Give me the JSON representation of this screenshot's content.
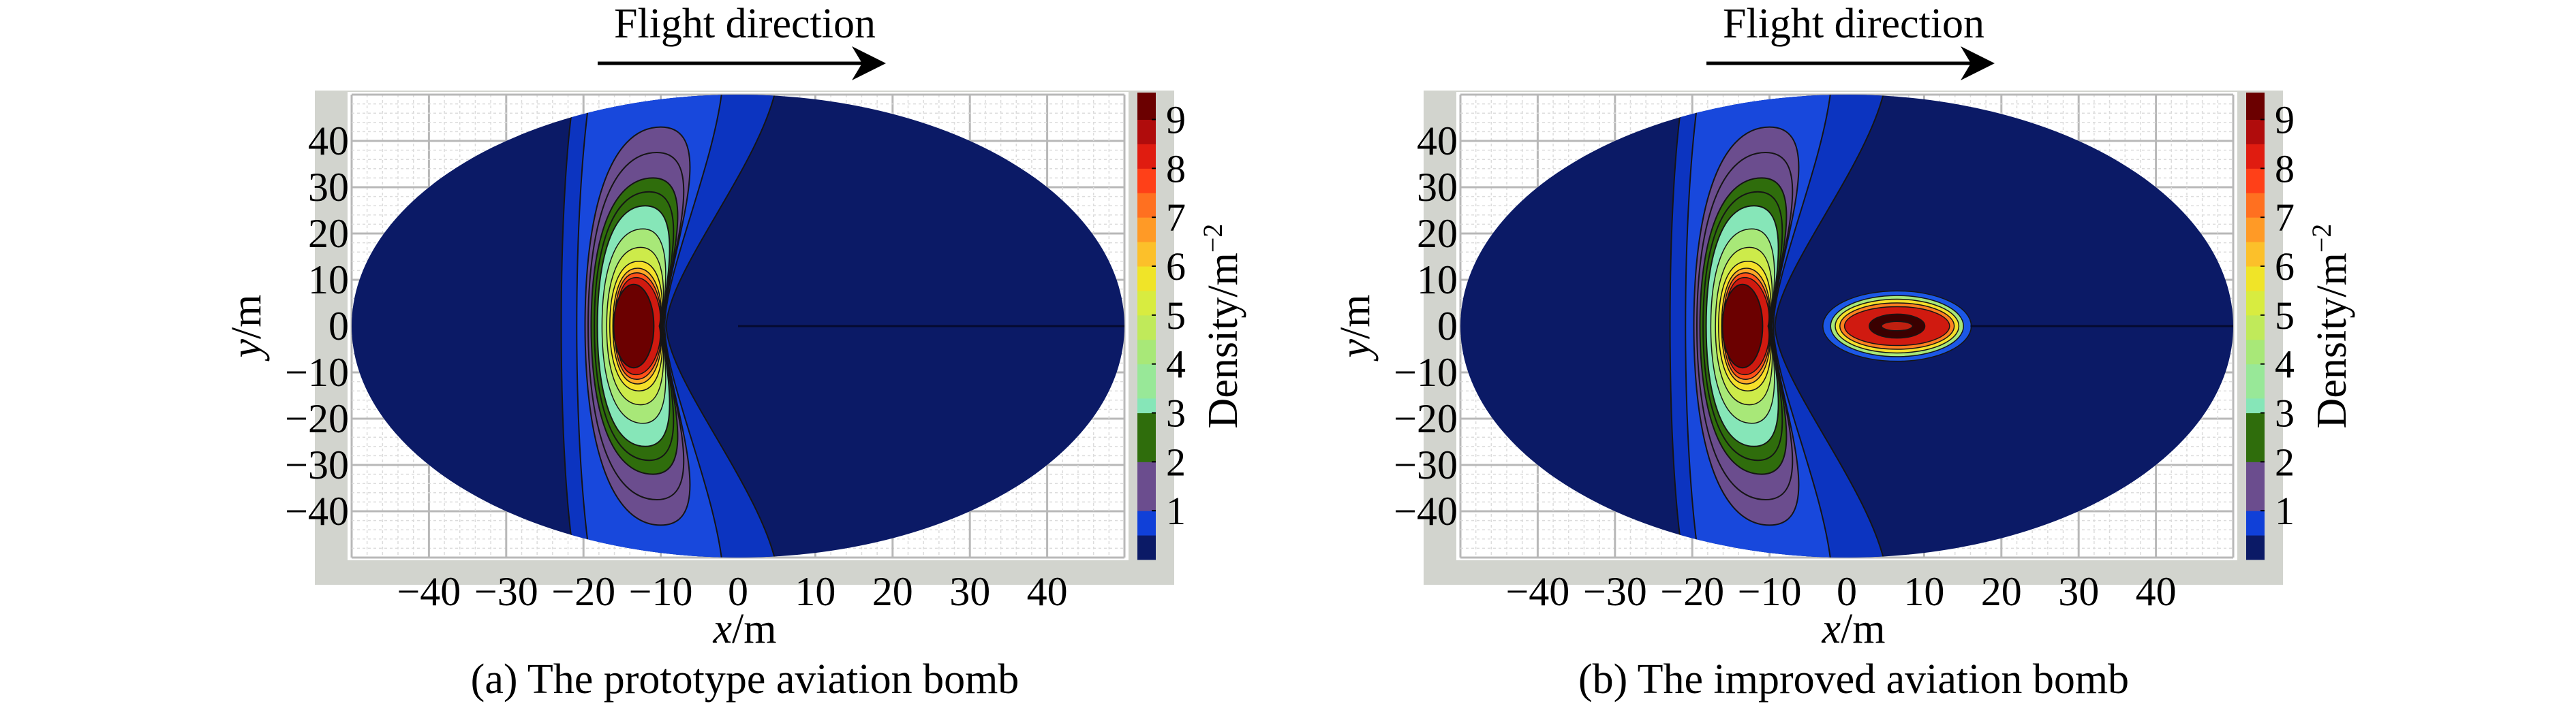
{
  "colors": {
    "frame": "#d2d4ce",
    "grid_major": "#b8b8b8",
    "grid_minor": "#dcdcdc",
    "background_level": "#0b1a66",
    "contour_line": "#151515"
  },
  "chart_data": [
    {
      "type": "heatmap",
      "caption": "(a) The prototype aviation bomb",
      "annotation": "Flight direction",
      "xlabel_var": "x",
      "xlabel_unit": "/m",
      "ylabel_var": "y",
      "ylabel_unit": "/m",
      "xlim": [
        -50,
        50
      ],
      "ylim": [
        -50,
        50
      ],
      "xticks": [
        "−40",
        "−30",
        "−20",
        "−10",
        "0",
        "10",
        "20",
        "30",
        "40"
      ],
      "xtick_values": [
        -40,
        -30,
        -20,
        -10,
        0,
        10,
        20,
        30,
        40
      ],
      "yticks": [
        "40",
        "30",
        "20",
        "10",
        "0",
        "−10",
        "−20",
        "−30",
        "−40"
      ],
      "ytick_values": [
        40,
        30,
        20,
        10,
        0,
        -10,
        -20,
        -30,
        -40
      ],
      "grid": true,
      "colorbar": {
        "label": "Density/m",
        "label_sup": "−2",
        "range": [
          0,
          9.55
        ],
        "ticks": [
          "1",
          "2",
          "3",
          "4",
          "5",
          "6",
          "7",
          "8",
          "9"
        ],
        "tick_values": [
          1,
          2,
          3,
          4,
          5,
          6,
          7,
          8,
          9
        ]
      },
      "peaks": [
        {
          "x": -13.5,
          "y": 0,
          "density": 9.5
        }
      ]
    },
    {
      "type": "heatmap",
      "caption": "(b) The improved aviation bomb",
      "annotation": "Flight direction",
      "xlabel_var": "x",
      "xlabel_unit": "/m",
      "ylabel_var": "y",
      "ylabel_unit": "/m",
      "xlim": [
        -50,
        50
      ],
      "ylim": [
        -50,
        50
      ],
      "xticks": [
        "−40",
        "−30",
        "−20",
        "−10",
        "0",
        "10",
        "20",
        "30",
        "40"
      ],
      "xtick_values": [
        -40,
        -30,
        -20,
        -10,
        0,
        10,
        20,
        30,
        40
      ],
      "yticks": [
        "40",
        "30",
        "20",
        "10",
        "0",
        "−10",
        "−20",
        "−30",
        "−40"
      ],
      "ytick_values": [
        40,
        30,
        20,
        10,
        0,
        -10,
        -20,
        -30,
        -40
      ],
      "grid": true,
      "colorbar": {
        "label": "Density/m",
        "label_sup": "−2",
        "range": [
          0,
          9.55
        ],
        "ticks": [
          "1",
          "2",
          "3",
          "4",
          "5",
          "6",
          "7",
          "8",
          "9"
        ],
        "tick_values": [
          1,
          2,
          3,
          4,
          5,
          6,
          7,
          8,
          9
        ]
      },
      "peaks": [
        {
          "x": -13.5,
          "y": 0,
          "density": 9.5
        },
        {
          "x": 6.5,
          "y": 0,
          "density": 9.5
        }
      ]
    }
  ],
  "colorbar_bands": [
    {
      "from": 0,
      "to": 0.5,
      "color": "#0b1a66"
    },
    {
      "from": 0.5,
      "to": 1,
      "color": "#1040d8"
    },
    {
      "from": 1,
      "to": 2,
      "color": "#6b4d8e"
    },
    {
      "from": 2,
      "to": 3,
      "color": "#2f6d0c"
    },
    {
      "from": 3,
      "to": 3.3,
      "color": "#86e6b8"
    },
    {
      "from": 3.3,
      "to": 4,
      "color": "#98e898"
    },
    {
      "from": 4,
      "to": 4.5,
      "color": "#a8e878"
    },
    {
      "from": 4.5,
      "to": 5,
      "color": "#c0ea5a"
    },
    {
      "from": 5,
      "to": 5.5,
      "color": "#d8ec40"
    },
    {
      "from": 5.5,
      "to": 6,
      "color": "#f0e428"
    },
    {
      "from": 6,
      "to": 6.5,
      "color": "#fcc02a"
    },
    {
      "from": 6.5,
      "to": 7,
      "color": "#ff9a26"
    },
    {
      "from": 7,
      "to": 7.5,
      "color": "#ff7020"
    },
    {
      "from": 7.5,
      "to": 8,
      "color": "#ff4018"
    },
    {
      "from": 8,
      "to": 8.5,
      "color": "#e01c10"
    },
    {
      "from": 8.5,
      "to": 9,
      "color": "#b00c0c"
    },
    {
      "from": 9,
      "to": 9.55,
      "color": "#6b0000"
    }
  ]
}
